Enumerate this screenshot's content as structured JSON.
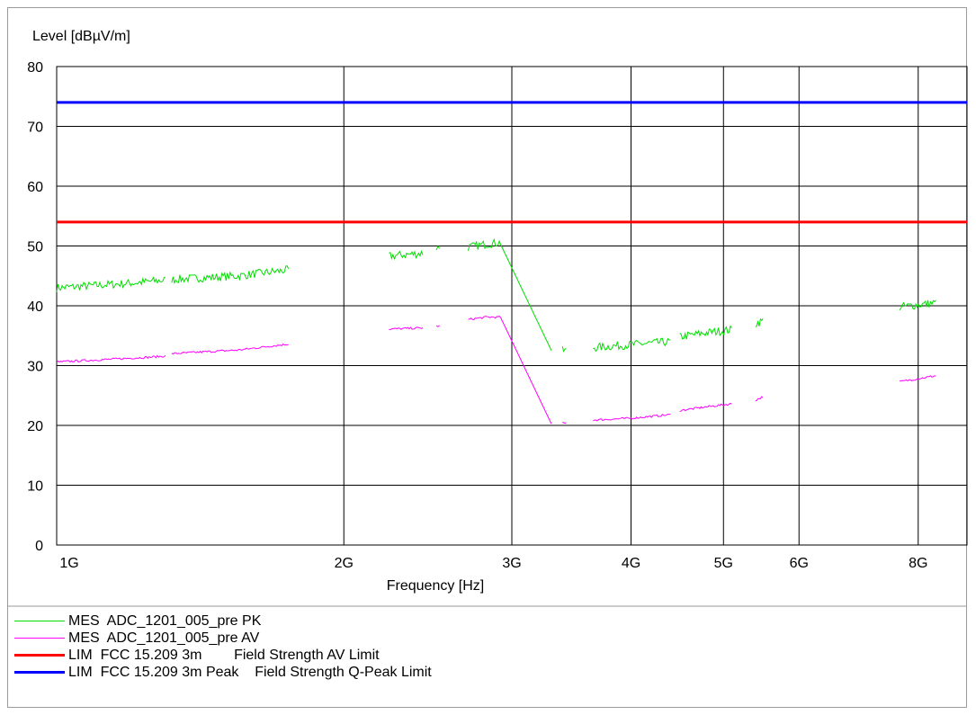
{
  "chart_data": {
    "type": "line",
    "ylabel": "Level [dBµV/m]",
    "xlabel": "Frequency [Hz]",
    "x_scale": "log",
    "xlim": [
      1000000000,
      9000000000
    ],
    "ylim": [
      0,
      80
    ],
    "grid": true,
    "legend_position": "bottom",
    "y_ticks": [
      "0",
      "10",
      "20",
      "30",
      "40",
      "50",
      "60",
      "70",
      "80"
    ],
    "x_ticks": [
      {
        "value": 1000000000,
        "label": "1G"
      },
      {
        "value": 2000000000,
        "label": "2G"
      },
      {
        "value": 3000000000,
        "label": "3G"
      },
      {
        "value": 4000000000,
        "label": "4G"
      },
      {
        "value": 5000000000,
        "label": "5G"
      },
      {
        "value": 6000000000,
        "label": "6G"
      },
      {
        "value": 8000000000,
        "label": "8G"
      }
    ],
    "series": [
      {
        "name": "MES  ADC_1201_005_pre PK",
        "color": "#00e000",
        "segments": [
          {
            "x": [
              1000000000,
              1200000000,
              1300000000
            ],
            "y": [
              43,
              43.8,
              44.3
            ]
          },
          {
            "x": [
              1320000000,
              1550000000,
              1750000000
            ],
            "y": [
              44.4,
              45,
              46
            ]
          },
          {
            "x": [
              2230000000,
              2420000000
            ],
            "y": [
              48.3,
              48.8
            ]
          },
          {
            "x": [
              2500000000,
              2520000000
            ],
            "y": [
              49.7,
              49.7
            ]
          },
          {
            "x": [
              2700000000,
              2820000000,
              2920000000,
              3300000000
            ],
            "y": [
              49.8,
              50.3,
              50.6,
              32.6
            ]
          },
          {
            "x": [
              3390000000,
              3420000000
            ],
            "y": [
              32.5,
              32.5
            ]
          },
          {
            "x": [
              3650000000,
              4000000000,
              4400000000
            ],
            "y": [
              33,
              33.5,
              34
            ]
          },
          {
            "x": [
              4500000000,
              4800000000,
              5100000000
            ],
            "y": [
              34.8,
              35.5,
              36
            ]
          },
          {
            "x": [
              5400000000,
              5500000000
            ],
            "y": [
              37,
              37.5
            ]
          },
          {
            "x": [
              7650000000,
              8350000000
            ],
            "y": [
              39.8,
              40.5
            ]
          }
        ]
      },
      {
        "name": "MES  ADC_1201_005_pre AV",
        "color": "#ff00ff",
        "segments": [
          {
            "x": [
              1000000000,
              1250000000,
              1300000000
            ],
            "y": [
              30.6,
              31.4,
              31.6
            ]
          },
          {
            "x": [
              1320000000,
              1550000000,
              1750000000
            ],
            "y": [
              32,
              32.6,
              33.6
            ]
          },
          {
            "x": [
              2230000000,
              2420000000
            ],
            "y": [
              36.1,
              36.3
            ]
          },
          {
            "x": [
              2500000000,
              2520000000
            ],
            "y": [
              36.6,
              36.6
            ]
          },
          {
            "x": [
              2700000000,
              2820000000,
              2920000000,
              3300000000
            ],
            "y": [
              37.7,
              38.1,
              38.1,
              20.2
            ]
          },
          {
            "x": [
              3390000000,
              3420000000
            ],
            "y": [
              20.4,
              20.4
            ]
          },
          {
            "x": [
              3650000000,
              4000000000,
              4400000000
            ],
            "y": [
              20.9,
              21.2,
              21.8
            ]
          },
          {
            "x": [
              4500000000,
              4800000000,
              5100000000
            ],
            "y": [
              22.5,
              23.1,
              23.6
            ]
          },
          {
            "x": [
              5400000000,
              5500000000
            ],
            "y": [
              24.2,
              24.8
            ]
          },
          {
            "x": [
              7650000000,
              8350000000
            ],
            "y": [
              27.3,
              28.3
            ]
          }
        ]
      },
      {
        "name": "LIM  FCC 15.209 3m        Field Strength AV Limit",
        "color": "#ff0000",
        "segments": [
          {
            "x": [
              1000000000,
              9000000000
            ],
            "y": [
              54,
              54
            ]
          }
        ]
      },
      {
        "name": "LIM  FCC 15.209 3m Peak    Field Strength Q-Peak Limit",
        "color": "#0000ff",
        "segments": [
          {
            "x": [
              1000000000,
              9000000000
            ],
            "y": [
              74,
              74
            ]
          }
        ]
      }
    ]
  }
}
